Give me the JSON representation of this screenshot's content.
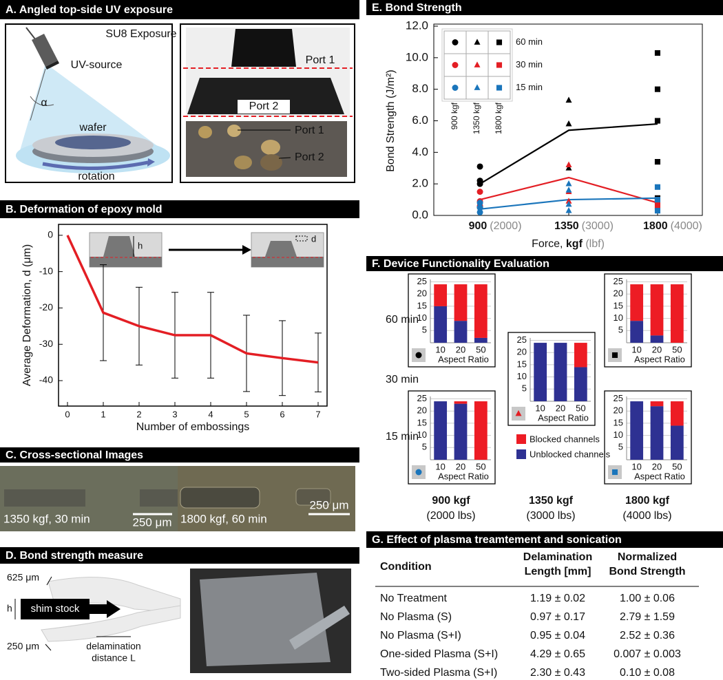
{
  "panels": {
    "A": {
      "title": "A.   Angled top-side UV exposure",
      "exposure": "SU8 Exposure",
      "source": "UV-source",
      "angle": "α",
      "wafer": "wafer",
      "rotation": "rotation",
      "port1": "Port 1",
      "port2": "Port 2",
      "photo_port1": "Port 1",
      "photo_port2": "Port 2"
    },
    "B": {
      "title": "B.   Deformation of epoxy mold",
      "inset_h": "h",
      "inset_d": "d"
    },
    "C": {
      "title": "C. Cross-sectional Images",
      "left_caption": "1350 kgf, 30 min",
      "left_scale": "250 μm",
      "right_caption": "1800 kgf, 60 min",
      "right_scale": "250 μm"
    },
    "D": {
      "title": "D.   Bond strength measure",
      "thick_top": "625 μm",
      "h": "h",
      "shim": "shim stock",
      "thick_bottom": "250 μm",
      "delam_1": "delamination",
      "delam_2": "distance L"
    },
    "E": {
      "title": "E. Bond Strength"
    },
    "F": {
      "title": "F. Device Functionality Evaluation",
      "rows": [
        "60 min",
        "30 min",
        "15 min"
      ],
      "columns": [
        {
          "force": "900 kgf",
          "lbs": "(2000 lbs)"
        },
        {
          "force": "1350 kgf",
          "lbs": "(3000 lbs)"
        },
        {
          "force": "1800 kgf",
          "lbs": "(4000 lbs)"
        }
      ],
      "legend": [
        {
          "name": "Blocked channels",
          "color": "#ed1c24"
        },
        {
          "name": "Unblocked channels",
          "color": "#2e3192"
        }
      ]
    },
    "G": {
      "title": "G. Effect of plasma treamtement and sonication",
      "header": [
        [
          "Condition"
        ],
        [
          "Delamination",
          "Length [mm]"
        ],
        [
          "Normalized",
          "Bond Strength"
        ]
      ],
      "rows": [
        [
          "No Treatment",
          "1.19 ± 0.02",
          "1.00 ± 0.06"
        ],
        [
          "No Plasma (S)",
          "0.97 ± 0.17",
          "2.79 ± 1.59"
        ],
        [
          "No Plasma (S+I)",
          "0.95 ± 0.04",
          "2.52 ± 0.36"
        ],
        [
          "One-sided Plasma (S+I)",
          "4.29 ± 0.65",
          "0.007 ± 0.003"
        ],
        [
          "Two-sided Plasma (S+I)",
          "2.30 ± 0.43",
          "0.10 ± 0.08"
        ]
      ]
    }
  },
  "chart_data": [
    {
      "type": "line",
      "x_label": "Number of embossings",
      "y_label": "Average Deformation, d (μm)",
      "color": "#e31e24",
      "x": [
        0,
        1,
        2,
        3,
        4,
        5,
        6,
        7
      ],
      "values": [
        0,
        -21.3,
        -25,
        -27.5,
        -27.5,
        -32.5,
        -33.8,
        -35
      ],
      "errors": [
        null,
        13.2,
        10.7,
        11.8,
        11.8,
        10.5,
        10.3,
        8.1
      ],
      "xlim": [
        -0.25,
        7.25
      ],
      "ylim": [
        -47,
        3
      ],
      "xticks": [
        0,
        1,
        2,
        3,
        4,
        5,
        6,
        7
      ],
      "yticks": [
        0,
        -10,
        -20,
        -30,
        -40
      ]
    },
    {
      "type": "scatter",
      "y_label": "Bond Strength (J/m²)",
      "x_label": [
        "Force, ",
        "kgf",
        " (lbf)"
      ],
      "xlim": [
        666,
        2027
      ],
      "ylim": [
        0,
        12
      ],
      "xticks": [
        {
          "value": 900,
          "label": "900"
        },
        {
          "value": 1350,
          "label": "1350"
        },
        {
          "value": 1800,
          "label": "1800"
        }
      ],
      "x_secondary_labels": [
        "(2000)",
        "(3000)",
        "(4000)"
      ],
      "yticks": [
        {
          "value": 0,
          "label": "0.0"
        },
        {
          "value": 2,
          "label": "2.0"
        },
        {
          "value": 4,
          "label": "4.0"
        },
        {
          "value": 6,
          "label": "6.0"
        },
        {
          "value": 8,
          "label": "8.0"
        },
        {
          "value": 10,
          "label": "10.0"
        },
        {
          "value": 12,
          "label": "12.0"
        }
      ],
      "legend": {
        "rows": [
          {
            "label": "60 min",
            "color": "#000000"
          },
          {
            "label": "30 min",
            "color": "#e31e24"
          },
          {
            "label": "15 min",
            "color": "#1a75bb"
          }
        ],
        "columns": [
          {
            "label": "900 kgf",
            "marker": "circle"
          },
          {
            "label": "1350 kgf",
            "marker": "triangle"
          },
          {
            "label": "1800 kgf",
            "marker": "square"
          }
        ]
      },
      "series": [
        {
          "color": "#000000",
          "marker": "circle",
          "x": [
            900,
            900,
            900,
            900
          ],
          "values": [
            3.1,
            2.2,
            2.0,
            0.5
          ]
        },
        {
          "color": "#000000",
          "marker": "triangle",
          "x": [
            1350,
            1350,
            1350
          ],
          "values": [
            7.3,
            5.8,
            3.0
          ]
        },
        {
          "color": "#000000",
          "marker": "square",
          "x": [
            1800,
            1800,
            1800,
            1800,
            1800
          ],
          "values": [
            10.3,
            8.0,
            6.0,
            3.4,
            1.1
          ]
        },
        {
          "color": "#e31e24",
          "marker": "circle",
          "x": [
            900,
            900,
            900
          ],
          "values": [
            1.5,
            0.9,
            0.6
          ]
        },
        {
          "color": "#e31e24",
          "marker": "triangle",
          "x": [
            1350,
            1350,
            1350
          ],
          "values": [
            3.2,
            1.5,
            0.9
          ]
        },
        {
          "color": "#e31e24",
          "marker": "square",
          "x": [
            1800,
            1800
          ],
          "values": [
            0.9,
            0.6
          ]
        },
        {
          "color": "#1a75bb",
          "marker": "circle",
          "x": [
            900,
            900,
            900
          ],
          "values": [
            0.8,
            0.5,
            0.2
          ]
        },
        {
          "color": "#1a75bb",
          "marker": "triangle",
          "x": [
            1350,
            1350,
            1350,
            1350
          ],
          "values": [
            2.0,
            1.6,
            0.7,
            0.3
          ]
        },
        {
          "color": "#1a75bb",
          "marker": "square",
          "x": [
            1800,
            1800,
            1800
          ],
          "values": [
            1.8,
            1.0,
            0.3
          ]
        }
      ],
      "lines": [
        {
          "color": "#000000",
          "x": [
            900,
            1350,
            1800
          ],
          "values": [
            2.0,
            5.4,
            5.8
          ]
        },
        {
          "color": "#e31e24",
          "x": [
            900,
            1350,
            1800
          ],
          "values": [
            1.0,
            2.4,
            0.8
          ]
        },
        {
          "color": "#1a75bb",
          "x": [
            900,
            1350,
            1800
          ],
          "values": [
            0.4,
            1.0,
            1.1
          ]
        }
      ]
    },
    {
      "type": "bar",
      "stacked": true,
      "categories": [
        "10",
        "20",
        "50"
      ],
      "x_label": "Aspect Ratio",
      "ylim": [
        0,
        26
      ],
      "yticks": [
        5,
        10,
        15,
        20,
        25
      ],
      "grid": true,
      "icon": {
        "marker": "circle",
        "color": "#000000"
      },
      "series": [
        {
          "color": "#2e3192",
          "values": [
            15,
            9,
            2
          ]
        },
        {
          "color": "#ed1c24",
          "values": [
            9,
            15,
            22
          ]
        }
      ]
    },
    {
      "type": "bar",
      "stacked": true,
      "categories": [
        "10",
        "20",
        "50"
      ],
      "x_label": "Aspect Ratio",
      "ylim": [
        0,
        26
      ],
      "yticks": [
        5,
        10,
        15,
        20,
        25
      ],
      "grid": true,
      "icon": {
        "marker": "triangle",
        "color": "#e31e24"
      },
      "series": [
        {
          "color": "#2e3192",
          "values": [
            24,
            24,
            14
          ]
        },
        {
          "color": "#ed1c24",
          "values": [
            0,
            0,
            10
          ]
        }
      ]
    },
    {
      "type": "bar",
      "stacked": true,
      "categories": [
        "10",
        "20",
        "50"
      ],
      "x_label": "Aspect Ratio",
      "ylim": [
        0,
        26
      ],
      "yticks": [
        5,
        10,
        15,
        20,
        25
      ],
      "grid": true,
      "icon": {
        "marker": "square",
        "color": "#000000"
      },
      "series": [
        {
          "color": "#2e3192",
          "values": [
            9,
            3,
            0
          ]
        },
        {
          "color": "#ed1c24",
          "values": [
            15,
            21,
            24
          ]
        }
      ]
    },
    {
      "type": "bar",
      "stacked": true,
      "categories": [
        "10",
        "20",
        "50"
      ],
      "x_label": "Aspect Ratio",
      "ylim": [
        0,
        26
      ],
      "yticks": [
        5,
        10,
        15,
        20,
        25
      ],
      "grid": true,
      "icon": {
        "marker": "circle",
        "color": "#1a75bb"
      },
      "series": [
        {
          "color": "#2e3192",
          "values": [
            24,
            23,
            0
          ]
        },
        {
          "color": "#ed1c24",
          "values": [
            0,
            1,
            24
          ]
        }
      ]
    },
    {
      "type": "bar",
      "stacked": true,
      "categories": [
        "10",
        "20",
        "50"
      ],
      "x_label": "Aspect Ratio",
      "ylim": [
        0,
        26
      ],
      "yticks": [
        5,
        10,
        15,
        20,
        25
      ],
      "grid": true,
      "icon": {
        "marker": "square",
        "color": "#1a75bb"
      },
      "series": [
        {
          "color": "#2e3192",
          "values": [
            24,
            22,
            14
          ]
        },
        {
          "color": "#ed1c24",
          "values": [
            0,
            2,
            10
          ]
        }
      ]
    }
  ]
}
